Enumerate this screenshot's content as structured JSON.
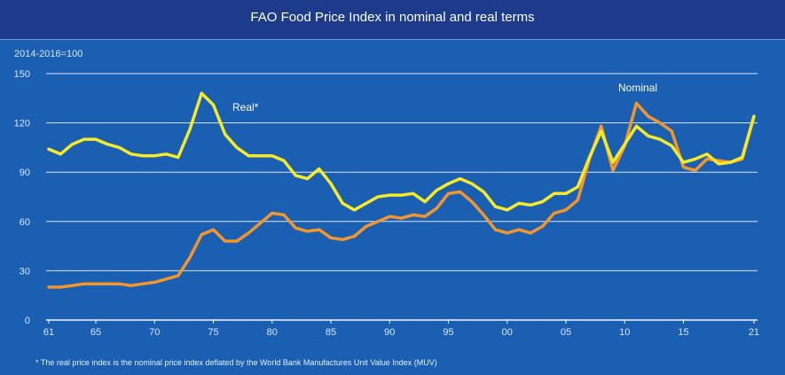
{
  "chart_data": {
    "type": "line",
    "title": "FAO Food Price Index in nominal and real terms",
    "ylabel": "2014-2016=100",
    "ylim": [
      0,
      150
    ],
    "yticks": [
      0,
      30,
      60,
      90,
      120,
      150
    ],
    "xlim": [
      1961,
      2021
    ],
    "xticks": [
      1961,
      1965,
      1970,
      1975,
      1980,
      1985,
      1990,
      1995,
      2000,
      2005,
      2010,
      2015,
      2021
    ],
    "xtick_labels": [
      "61",
      "65",
      "70",
      "75",
      "80",
      "85",
      "90",
      "95",
      "00",
      "05",
      "10",
      "15",
      "21"
    ],
    "grid": true,
    "series": [
      {
        "name": "Real*",
        "color": "#f4ea2a",
        "x": [
          1961,
          1962,
          1963,
          1964,
          1965,
          1966,
          1967,
          1968,
          1969,
          1970,
          1971,
          1972,
          1973,
          1974,
          1975,
          1976,
          1977,
          1978,
          1979,
          1980,
          1981,
          1982,
          1983,
          1984,
          1985,
          1986,
          1987,
          1988,
          1989,
          1990,
          1991,
          1992,
          1993,
          1994,
          1995,
          1996,
          1997,
          1998,
          1999,
          2000,
          2001,
          2002,
          2003,
          2004,
          2005,
          2006,
          2007,
          2008,
          2009,
          2010,
          2011,
          2012,
          2013,
          2014,
          2015,
          2016,
          2017,
          2018,
          2019,
          2020,
          2021
        ],
        "values": [
          104,
          101,
          107,
          110,
          110,
          107,
          105,
          101,
          100,
          100,
          101,
          99,
          116,
          138,
          131,
          113,
          105,
          100,
          100,
          100,
          97,
          88,
          86,
          92,
          83,
          71,
          67,
          71,
          75,
          76,
          76,
          77,
          72,
          79,
          83,
          86,
          83,
          78,
          69,
          67,
          71,
          70,
          72,
          77,
          77,
          81,
          99,
          115,
          96,
          107,
          118,
          112,
          110,
          106,
          96,
          98,
          101,
          95,
          96,
          99,
          124
        ]
      },
      {
        "name": "Nominal",
        "color": "#f0962d",
        "x": [
          1961,
          1962,
          1963,
          1964,
          1965,
          1966,
          1967,
          1968,
          1969,
          1970,
          1971,
          1972,
          1973,
          1974,
          1975,
          1976,
          1977,
          1978,
          1979,
          1980,
          1981,
          1982,
          1983,
          1984,
          1985,
          1986,
          1987,
          1988,
          1989,
          1990,
          1991,
          1992,
          1993,
          1994,
          1995,
          1996,
          1997,
          1998,
          1999,
          2000,
          2001,
          2002,
          2003,
          2004,
          2005,
          2006,
          2007,
          2008,
          2009,
          2010,
          2011,
          2012,
          2013,
          2014,
          2015,
          2016,
          2017,
          2018,
          2019,
          2020,
          2021
        ],
        "values": [
          20,
          20,
          21,
          22,
          22,
          22,
          22,
          21,
          22,
          23,
          25,
          27,
          38,
          52,
          55,
          48,
          48,
          53,
          59,
          65,
          64,
          56,
          54,
          55,
          50,
          49,
          51,
          57,
          60,
          63,
          62,
          64,
          63,
          68,
          77,
          78,
          72,
          64,
          55,
          53,
          55,
          53,
          57,
          65,
          67,
          73,
          98,
          118,
          91,
          106,
          132,
          124,
          120,
          115,
          93,
          91,
          98,
          97,
          96,
          98,
          124
        ]
      }
    ],
    "footnote": "* The real price index is the nominal price index deflated by the World Bank Manufactures Unit Value Index (MUV)"
  }
}
